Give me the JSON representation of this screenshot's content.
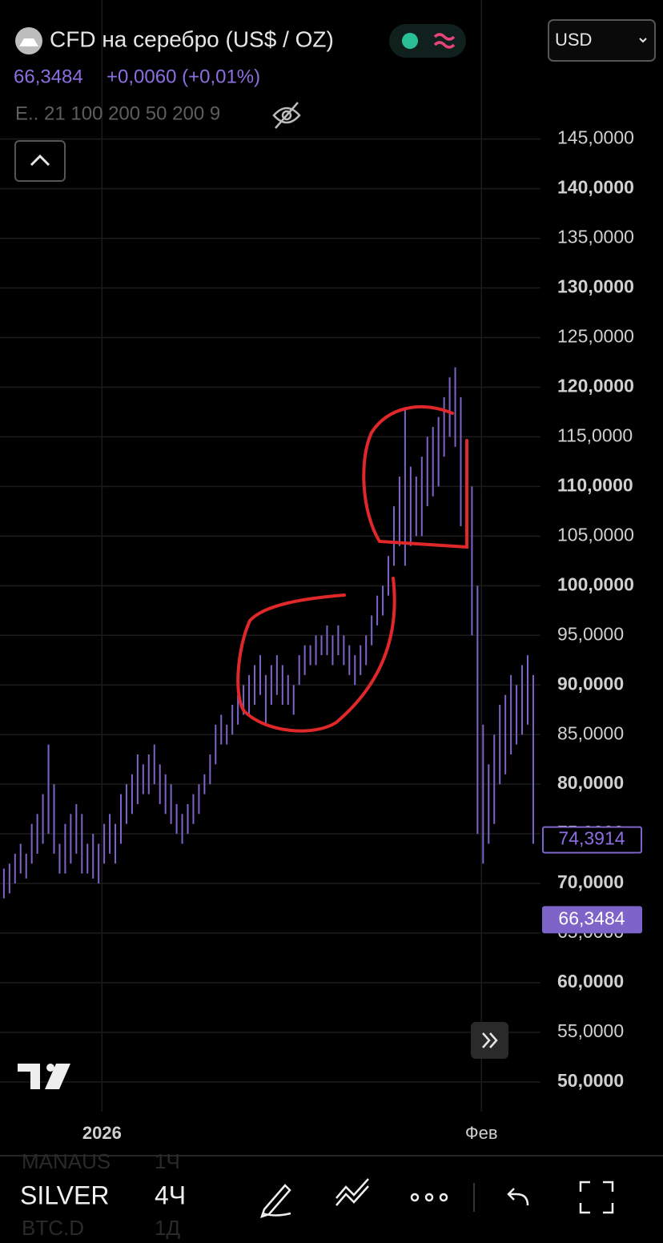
{
  "header": {
    "title": "CFD на серебро (US$ / OZ)",
    "price": "66,3484",
    "change": "+0,0060 (+0,01%)",
    "indicators": "E.. 21 100 200 50 200 9",
    "currency": "USD"
  },
  "chart_data": {
    "type": "ohlc",
    "color": "#7e64c8",
    "x": [
      0,
      1,
      2,
      3,
      4,
      5,
      6,
      7,
      8,
      9,
      10,
      11,
      12,
      13,
      14,
      15,
      16,
      17,
      18,
      19,
      20,
      21,
      22,
      23,
      24,
      25,
      26,
      27,
      28,
      29,
      30,
      31,
      32,
      33,
      34,
      35,
      36,
      37,
      38,
      39,
      40,
      41,
      42,
      43,
      44,
      45,
      46,
      47,
      48,
      49,
      50,
      51,
      52,
      53,
      54,
      55,
      56,
      57,
      58,
      59,
      60,
      61,
      62,
      63,
      64,
      65,
      66,
      67,
      68,
      69,
      70,
      71,
      72,
      73,
      74,
      75,
      76,
      77,
      78,
      79,
      80,
      81,
      82,
      83,
      84,
      85,
      86,
      87,
      88,
      89,
      90,
      91,
      92,
      93,
      94,
      95
    ],
    "high": [
      71.5,
      72,
      73,
      74,
      73,
      76,
      77,
      79,
      84,
      80,
      74,
      76,
      77,
      78,
      77,
      74,
      75,
      74,
      76,
      77,
      76,
      79,
      80,
      81,
      83,
      82,
      83,
      84,
      82,
      81,
      80,
      78,
      77,
      78,
      79,
      80,
      81,
      83,
      86,
      87,
      86,
      88,
      89,
      90,
      91,
      92,
      93,
      91,
      92,
      93,
      92,
      91,
      90,
      93,
      94,
      94,
      95,
      95,
      96,
      95,
      96,
      95,
      94,
      93,
      94,
      95,
      97,
      99,
      100,
      103,
      108,
      111,
      118,
      112,
      111,
      113,
      115,
      116,
      117,
      119,
      121,
      122,
      119,
      113,
      110,
      100,
      86,
      82,
      85,
      88,
      89,
      91,
      90,
      92,
      93,
      91
    ],
    "low": [
      68.5,
      69,
      70,
      71,
      70.5,
      72,
      73,
      74,
      75,
      73,
      71,
      71,
      72,
      73,
      71,
      71,
      70.5,
      70,
      72,
      73,
      72,
      74,
      76,
      77,
      78,
      79,
      79,
      80,
      78,
      77,
      76,
      75,
      74,
      75,
      76,
      77,
      79,
      80,
      82,
      84,
      84,
      85,
      86,
      87,
      87,
      88,
      89,
      86,
      88,
      89,
      88,
      88,
      87,
      90,
      91,
      92,
      92,
      93,
      93,
      92,
      93,
      92,
      91,
      90,
      91,
      92,
      94,
      96,
      97,
      99,
      102,
      104,
      102,
      104,
      105,
      105,
      108,
      109,
      110,
      113,
      115,
      114,
      106,
      104,
      95,
      75,
      72,
      74,
      76,
      80,
      81,
      83,
      84,
      85,
      86,
      74
    ],
    "xlim": [
      -0.7,
      96.3
    ],
    "xticks": [
      {
        "value": 17.6,
        "label": "2026"
      },
      {
        "value": 85.7,
        "label": "Фев"
      }
    ],
    "ylim": [
      48.3,
      157.4
    ],
    "yticks": [
      {
        "value": 145,
        "label": "145,0000"
      },
      {
        "value": 140,
        "label": "140,0000"
      },
      {
        "value": 135,
        "label": "135,0000"
      },
      {
        "value": 130,
        "label": "130,0000"
      },
      {
        "value": 125,
        "label": "125,0000"
      },
      {
        "value": 120,
        "label": "120,0000"
      },
      {
        "value": 115,
        "label": "115,0000"
      },
      {
        "value": 110,
        "label": "110,0000"
      },
      {
        "value": 105,
        "label": "105,0000"
      },
      {
        "value": 100,
        "label": "100,0000"
      },
      {
        "value": 95,
        "label": "95,0000"
      },
      {
        "value": 90,
        "label": "90,0000"
      },
      {
        "value": 85,
        "label": "85,0000"
      },
      {
        "value": 80,
        "label": "80,0000"
      },
      {
        "value": 75,
        "label": "75,0000"
      },
      {
        "value": 70,
        "label": "70,0000"
      },
      {
        "value": 65,
        "label": "65,0000"
      },
      {
        "value": 60,
        "label": "60,0000"
      },
      {
        "value": 55,
        "label": "55,0000"
      },
      {
        "value": 50,
        "label": "50,0000"
      }
    ],
    "grid": true,
    "price_lines": [
      {
        "value": 74.3914,
        "label": "74,3914"
      },
      {
        "value": 66.3484,
        "label": "66,3484"
      }
    ]
  },
  "toolbar": {
    "symbol": "SILVER",
    "interval": "4Ч",
    "ghost": [
      [
        "MANAUS",
        "1Ч"
      ],
      [
        "BTC.D",
        "1Д"
      ]
    ]
  }
}
